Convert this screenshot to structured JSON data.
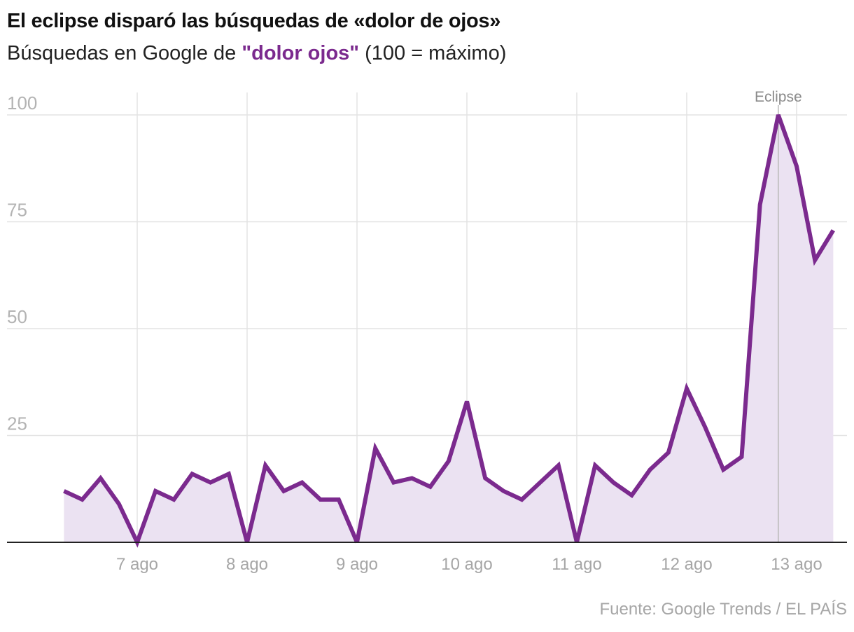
{
  "title": "El eclipse disparó las búsquedas de «dolor de ojos»",
  "subtitle": {
    "prefix": "Búsquedas en Google de ",
    "highlight": "\"dolor ojos\"",
    "suffix": " (100 = máximo)"
  },
  "source": "Fuente: Google Trends / EL PAÍS",
  "colors": {
    "line": "#7b2a8e",
    "area": "#ebe2f2",
    "grid": "#e3e3e3",
    "baseline": "#222222",
    "annotation_line": "#b8b8b8"
  },
  "chart_data": {
    "type": "line",
    "title": "El eclipse disparó las búsquedas de «dolor de ojos»",
    "ylim": [
      0,
      100
    ],
    "yticks": [
      100,
      75,
      50,
      25
    ],
    "xlim": [
      -0.83,
      6.3
    ],
    "xticks": [
      {
        "x": 0,
        "label": "7 ago"
      },
      {
        "x": 1,
        "label": "8 ago"
      },
      {
        "x": 2,
        "label": "9 ago"
      },
      {
        "x": 3,
        "label": "10 ago"
      },
      {
        "x": 4,
        "label": "11 ago"
      },
      {
        "x": 5,
        "label": "12 ago"
      },
      {
        "x": 6,
        "label": "13 ago"
      }
    ],
    "grid": true,
    "area_fill": true,
    "x_start": -0.6667,
    "x_step": 0.16667,
    "values": [
      12,
      10,
      15,
      9,
      0,
      12,
      10,
      16,
      14,
      16,
      0,
      18,
      12,
      14,
      10,
      10,
      0,
      22,
      14,
      15,
      13,
      19,
      33,
      15,
      12,
      10,
      14,
      18,
      0,
      18,
      14,
      11,
      17,
      21,
      36,
      27,
      17,
      20,
      79,
      100,
      88,
      66,
      73
    ],
    "annotation": {
      "label": "Eclipse",
      "x": 5.8333
    }
  }
}
